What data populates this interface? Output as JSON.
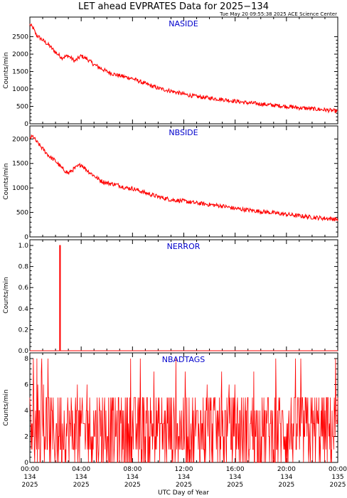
{
  "figure": {
    "title": "LET ahead EVPRATES Data for 2025−134",
    "timestamp": "Tue May 20 09:55:38 2025 ACE Science Center",
    "xlabel": "UTC Day of Year",
    "colors": {
      "data": "#ff0000",
      "panel_title": "#0000cc",
      "axes": "#000000"
    }
  },
  "chart_data": [
    {
      "type": "line",
      "title": "NASIDE",
      "ylabel": "Counts/min",
      "ylim": [
        0,
        2900
      ],
      "yticks": [
        0,
        500,
        1000,
        1500,
        2000,
        2500
      ],
      "xlim": [
        0,
        24
      ],
      "series_x_hours": [
        0,
        0.25,
        0.5,
        1,
        1.5,
        2,
        2.5,
        3,
        3.5,
        4,
        4.5,
        5,
        5.5,
        6,
        6.5,
        7,
        7.5,
        8,
        9,
        10,
        11,
        12,
        13,
        14,
        15,
        16,
        17,
        18,
        19,
        20,
        21,
        22,
        23,
        24
      ],
      "values": [
        2850,
        2750,
        2550,
        2400,
        2250,
        2050,
        1900,
        1950,
        1800,
        1950,
        1850,
        1700,
        1600,
        1500,
        1430,
        1380,
        1340,
        1300,
        1150,
        1020,
        940,
        850,
        780,
        740,
        700,
        650,
        600,
        570,
        530,
        500,
        460,
        430,
        400,
        360
      ]
    },
    {
      "type": "line",
      "title": "NBSIDE",
      "ylabel": "Counts/min",
      "ylim": [
        0,
        2150
      ],
      "yticks": [
        0,
        500,
        1000,
        1500,
        2000
      ],
      "xlim": [
        0,
        24
      ],
      "series_x_hours": [
        0,
        0.25,
        0.5,
        1,
        1.5,
        2,
        2.5,
        3,
        3.5,
        4,
        4.5,
        5,
        5.5,
        6,
        6.5,
        7,
        7.5,
        8,
        9,
        10,
        11,
        12,
        13,
        14,
        15,
        16,
        17,
        18,
        19,
        20,
        21,
        22,
        23,
        24
      ],
      "values": [
        2020,
        2050,
        1950,
        1800,
        1650,
        1550,
        1400,
        1300,
        1400,
        1480,
        1350,
        1250,
        1150,
        1100,
        1080,
        1050,
        1000,
        990,
        900,
        820,
        760,
        730,
        690,
        660,
        630,
        580,
        550,
        520,
        490,
        460,
        430,
        400,
        380,
        360
      ]
    },
    {
      "type": "line",
      "title": "NERROR",
      "ylabel": "Counts/min",
      "ylim": [
        0,
        1.0
      ],
      "yticks": [
        0.0,
        0.2,
        0.4,
        0.6,
        0.8,
        1.0
      ],
      "xlim": [
        0,
        24
      ],
      "spikes": [
        {
          "x_hours": 2.35,
          "value": 1.0
        }
      ]
    },
    {
      "type": "line",
      "title": "NBADTAGS",
      "ylabel": "Counts/min",
      "ylim": [
        0,
        8
      ],
      "yticks": [
        0,
        2,
        4,
        6,
        8
      ],
      "xlim": [
        0,
        24
      ],
      "noise_level": {
        "typical_min": 0,
        "typical_max": 5,
        "peak": 8
      }
    }
  ],
  "x_ticks": [
    {
      "time": "00:00",
      "day": "134",
      "year": "2025"
    },
    {
      "time": "04:00",
      "day": "134",
      "year": "2025"
    },
    {
      "time": "08:00",
      "day": "134",
      "year": "2025"
    },
    {
      "time": "12:00",
      "day": "134",
      "year": "2025"
    },
    {
      "time": "16:00",
      "day": "134",
      "year": "2025"
    },
    {
      "time": "20:00",
      "day": "134",
      "year": "2025"
    },
    {
      "time": "00:00",
      "day": "135",
      "year": "2025"
    }
  ]
}
